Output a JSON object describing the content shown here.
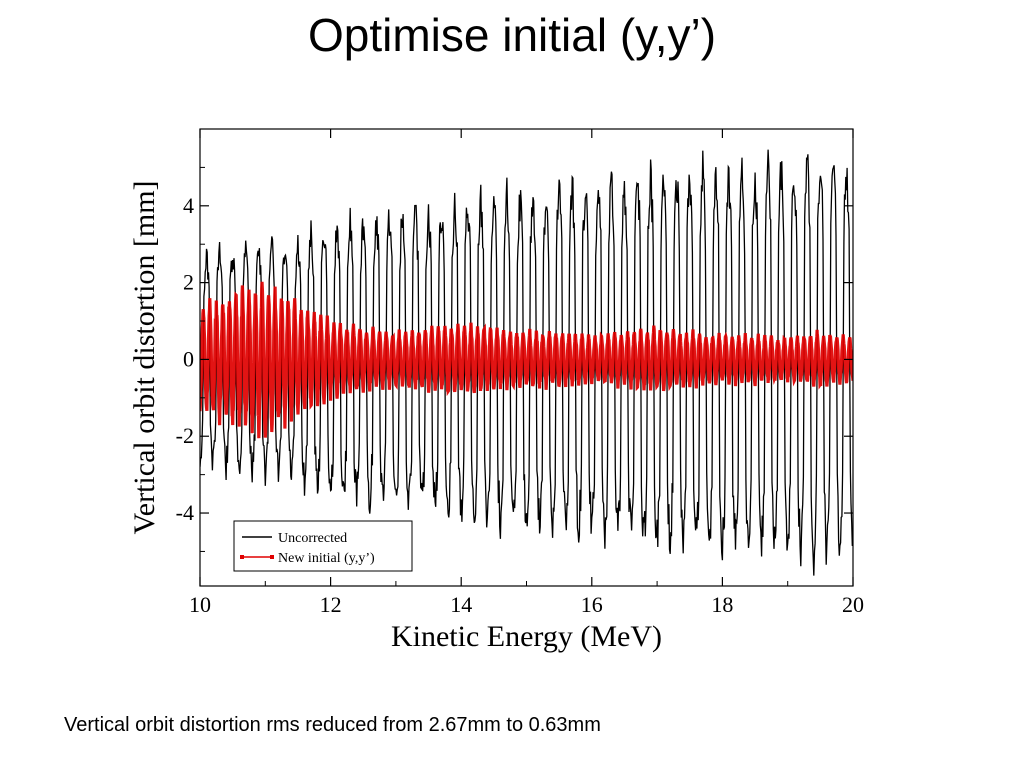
{
  "slide": {
    "title": "Optimise initial (y,y’)",
    "footer": "Vertical orbit distortion rms reduced from 2.67mm to 0.63mm"
  },
  "chart_data": {
    "type": "line",
    "xlabel": "Kinetic Energy (MeV)",
    "ylabel": "Vertical orbit distortion [mm]",
    "xlim": [
      10,
      20
    ],
    "ylim": [
      -5.9,
      6
    ],
    "xticks": [
      10,
      12,
      14,
      16,
      18,
      20
    ],
    "yticks": [
      -4,
      -2,
      0,
      2,
      4
    ],
    "grid": false,
    "legend_position": "bottom-left",
    "series": [
      {
        "name": "Uncorrected",
        "color": "#000000",
        "oscillation": {
          "x": [
            10,
            10.5,
            11,
            11.5,
            12,
            12.5,
            13,
            13.5,
            14,
            14.5,
            15,
            15.5,
            16,
            16.5,
            17,
            17.5,
            18,
            18.5,
            19,
            19.5,
            20
          ],
          "amplitude": [
            3.0,
            3.2,
            3.3,
            3.5,
            3.9,
            4.1,
            4.2,
            4.3,
            4.6,
            4.7,
            4.8,
            5.0,
            5.1,
            5.2,
            5.4,
            5.4,
            5.5,
            5.5,
            5.6,
            5.7,
            5.6
          ],
          "zero_crossing_spacing": 0.1
        }
      },
      {
        "name": "New initial (y,y’)",
        "color": "#e00000",
        "oscillation": {
          "x": [
            10,
            10.5,
            11,
            11.5,
            12,
            12.5,
            13,
            13.5,
            14,
            14.5,
            15,
            15.5,
            16,
            16.5,
            17,
            17.5,
            18,
            18.5,
            19,
            19.5,
            20
          ],
          "amplitude": [
            1.5,
            1.9,
            2.2,
            1.6,
            1.1,
            0.9,
            0.8,
            0.9,
            1.0,
            0.9,
            0.8,
            0.8,
            0.7,
            0.8,
            0.9,
            0.8,
            0.7,
            0.7,
            0.6,
            0.8,
            0.6
          ],
          "zero_crossing_spacing": 0.05
        }
      }
    ]
  }
}
